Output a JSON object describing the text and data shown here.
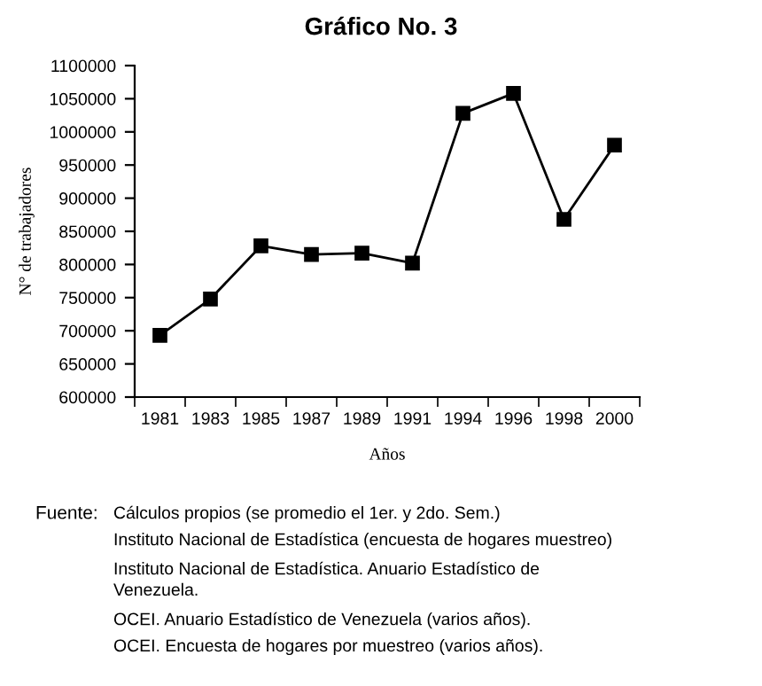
{
  "chart_data": {
    "type": "line",
    "title": "Gráfico No. 3",
    "xlabel": "Años",
    "ylabel": "N° de trabajadores",
    "categories": [
      "1981",
      "1983",
      "1985",
      "1987",
      "1989",
      "1991",
      "1994",
      "1996",
      "1998",
      "2000"
    ],
    "series": [
      {
        "color": "#000000",
        "values": [
          693000,
          748000,
          828000,
          815000,
          817000,
          802000,
          1028000,
          1058000,
          868000,
          980000
        ]
      }
    ],
    "ylim": [
      600000,
      1100000
    ],
    "yticks": [
      600000,
      650000,
      700000,
      750000,
      800000,
      850000,
      900000,
      950000,
      1000000,
      1050000,
      1100000
    ],
    "marker": "square",
    "line_style": "solid",
    "grid": false,
    "annotations": [
      "Fuente:",
      "Cálculos propios (se promedio el 1er. y 2do. Sem.)",
      "Instituto Nacional de Estadística (encuesta de hogares muestreo)",
      "Instituto Nacional de Estadística. Anuario Estadístico de\nVenezuela.",
      "OCEI. Anuario Estadístico de Venezuela (varios años).",
      "OCEI. Encuesta de hogares por muestreo (varios años)."
    ]
  }
}
